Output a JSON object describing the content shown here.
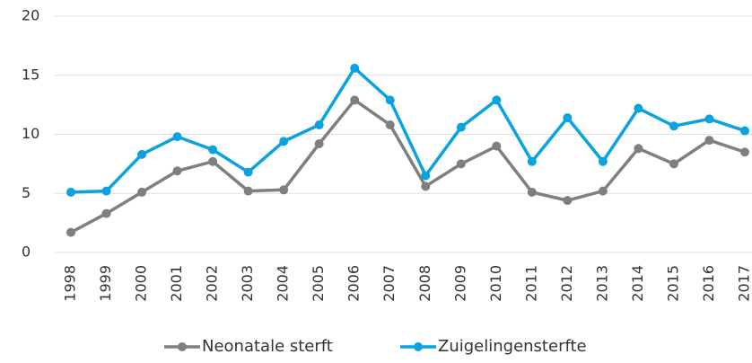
{
  "chart_data": {
    "type": "line",
    "categories": [
      "1998",
      "1999",
      "2000",
      "2001",
      "2002",
      "2003",
      "2004",
      "2005",
      "2006",
      "2007",
      "2008",
      "2009",
      "2010",
      "2011",
      "2012",
      "2013",
      "2014",
      "2015",
      "2016",
      "2017"
    ],
    "series": [
      {
        "name": "Neonatale sterft",
        "color": "#7f7f7f",
        "values": [
          1.7,
          3.3,
          5.1,
          6.9,
          7.7,
          5.2,
          5.3,
          9.2,
          12.9,
          10.8,
          5.6,
          7.5,
          9.0,
          5.1,
          4.4,
          5.2,
          8.8,
          7.5,
          9.5,
          8.5
        ]
      },
      {
        "name": "Zuigelingensterfte",
        "color": "#0aa3e0",
        "values": [
          5.1,
          5.2,
          8.3,
          9.8,
          8.7,
          6.8,
          9.4,
          10.8,
          15.6,
          12.9,
          6.5,
          10.6,
          12.9,
          7.7,
          11.4,
          7.7,
          12.2,
          10.7,
          11.3,
          10.3
        ]
      }
    ],
    "ylim": [
      0,
      20
    ],
    "yticks": [
      0,
      5,
      10,
      15,
      20
    ],
    "grid": true,
    "legend": "bottom"
  }
}
